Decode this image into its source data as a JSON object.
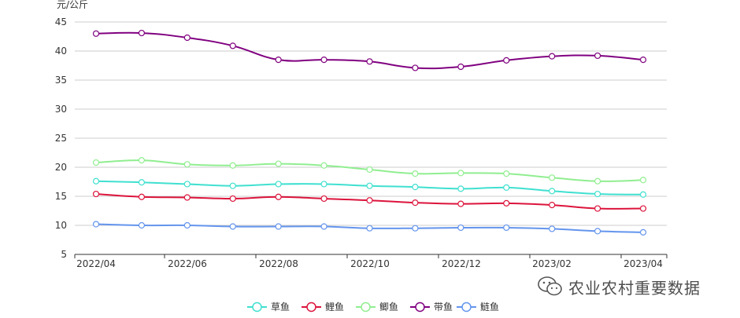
{
  "chart_data": {
    "type": "line",
    "unit_label": "元/公斤",
    "x": [
      "2022/04",
      "2022/05",
      "2022/06",
      "2022/07",
      "2022/08",
      "2022/09",
      "2022/10",
      "2022/11",
      "2022/12",
      "2023/01",
      "2023/02",
      "2023/03",
      "2023/04"
    ],
    "x_tick_labels": [
      "2022/04",
      "2022/06",
      "2022/08",
      "2022/10",
      "2022/12",
      "2023/02",
      "2023/04"
    ],
    "ylim": [
      5,
      45
    ],
    "y_ticks": [
      5,
      10,
      15,
      20,
      25,
      30,
      35,
      40,
      45
    ],
    "grid": true,
    "legend_position": "bottom",
    "series": [
      {
        "name": "草鱼",
        "color": "#40e0d0",
        "values": [
          17.6,
          17.4,
          17.1,
          16.8,
          17.1,
          17.1,
          16.8,
          16.6,
          16.3,
          16.5,
          15.9,
          15.4,
          15.3
        ]
      },
      {
        "name": "鲤鱼",
        "color": "#dc143c",
        "values": [
          15.4,
          14.9,
          14.8,
          14.6,
          14.9,
          14.6,
          14.3,
          13.9,
          13.7,
          13.8,
          13.5,
          12.9,
          12.9
        ]
      },
      {
        "name": "鲫鱼",
        "color": "#90ee90",
        "values": [
          20.8,
          21.2,
          20.5,
          20.3,
          20.6,
          20.3,
          19.6,
          18.9,
          19.0,
          18.9,
          18.2,
          17.6,
          17.8
        ]
      },
      {
        "name": "带鱼",
        "color": "#800080",
        "values": [
          43.0,
          43.1,
          42.3,
          40.9,
          38.5,
          38.5,
          38.2,
          37.1,
          37.3,
          38.4,
          39.1,
          39.2,
          38.5
        ]
      },
      {
        "name": "鲢鱼",
        "color": "#6495ed",
        "values": [
          10.2,
          10.0,
          10.0,
          9.8,
          9.8,
          9.8,
          9.5,
          9.5,
          9.6,
          9.6,
          9.4,
          9.0,
          8.8
        ]
      }
    ]
  },
  "watermark": {
    "text": "农业农村重要数据",
    "icon": "wechat-icon"
  }
}
